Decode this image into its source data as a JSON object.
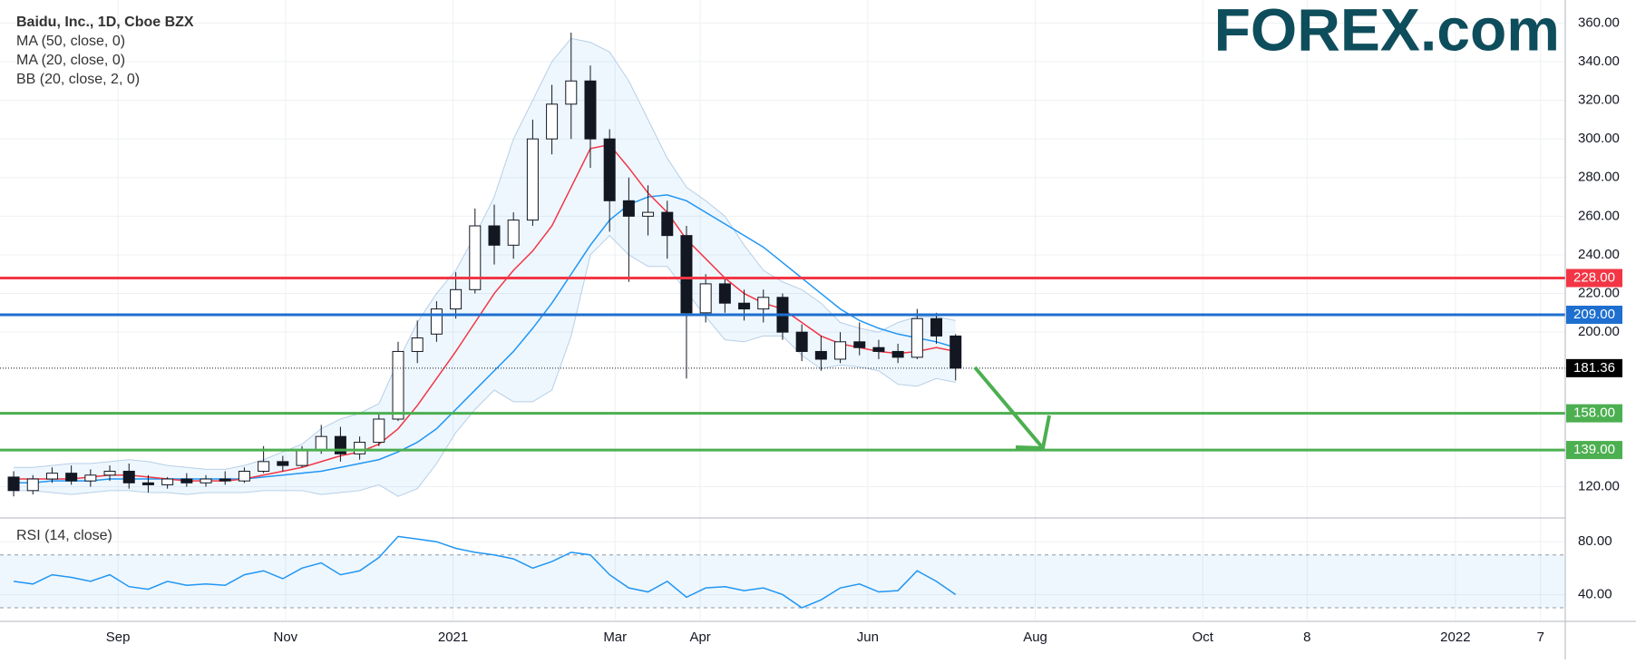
{
  "chart_data": [
    {
      "type": "candlestick",
      "title": "Baidu, Inc., 1D, Cboe BZX",
      "logo": "FOREX.com",
      "x": [
        -38,
        -31,
        -24,
        -17,
        -10,
        -3,
        4,
        11,
        18,
        25,
        32,
        39,
        46,
        53,
        60,
        67,
        74,
        81,
        88,
        95,
        102,
        109,
        116,
        123,
        130,
        137,
        144,
        151,
        158,
        165,
        172,
        179,
        186,
        193,
        200,
        207,
        214,
        221,
        228,
        235,
        242,
        249,
        256,
        263,
        270,
        277,
        284,
        291,
        298,
        305
      ],
      "open": [
        125,
        118,
        124,
        127,
        123,
        126,
        128,
        122,
        121,
        124,
        122,
        124,
        123,
        128,
        133,
        131,
        139,
        146,
        137,
        143,
        155,
        190,
        199,
        212,
        222,
        255,
        245,
        258,
        300,
        318,
        330,
        300,
        268,
        260,
        262,
        250,
        210,
        225,
        215,
        212,
        218,
        200,
        190,
        186,
        195,
        192,
        190,
        187,
        207,
        198
      ],
      "high": [
        128,
        126,
        130,
        131,
        129,
        131,
        132,
        126,
        125,
        127,
        126,
        128,
        130,
        141,
        136,
        141,
        152,
        151,
        146,
        158,
        195,
        206,
        216,
        231,
        264,
        266,
        262,
        310,
        328,
        355,
        338,
        305,
        280,
        276,
        268,
        255,
        230,
        228,
        222,
        222,
        220,
        204,
        198,
        200,
        205,
        196,
        194,
        212,
        210,
        199
      ],
      "low": [
        115,
        116,
        122,
        121,
        120,
        123,
        119,
        117,
        119,
        120,
        120,
        121,
        122,
        127,
        128,
        130,
        137,
        133,
        134,
        141,
        154,
        184,
        195,
        207,
        220,
        235,
        238,
        255,
        292,
        300,
        285,
        252,
        226,
        250,
        238,
        176,
        205,
        210,
        206,
        205,
        196,
        185,
        180,
        184,
        188,
        186,
        184,
        186,
        194,
        175
      ],
      "close": [
        118,
        124,
        127,
        123,
        126,
        128,
        122,
        121,
        124,
        122,
        124,
        123,
        128,
        133,
        131,
        139,
        146,
        137,
        143,
        155,
        190,
        197,
        212,
        222,
        255,
        245,
        258,
        300,
        318,
        330,
        300,
        268,
        260,
        262,
        250,
        210,
        225,
        215,
        212,
        218,
        200,
        190,
        186,
        195,
        192,
        190,
        187,
        207,
        198,
        181.36
      ],
      "series": [
        {
          "name": "MA (50, close, 0)",
          "color": "#2196f3",
          "values": [
            122,
            122,
            123,
            123,
            123,
            124,
            124,
            124,
            124,
            124,
            124,
            124,
            124,
            125,
            126,
            127,
            128,
            130,
            132,
            134,
            138,
            143,
            150,
            160,
            170,
            180,
            190,
            202,
            215,
            230,
            245,
            258,
            266,
            270,
            271,
            268,
            262,
            256,
            250,
            244,
            236,
            228,
            220,
            212,
            206,
            202,
            199,
            197,
            195,
            192
          ]
        },
        {
          "name": "MA (20, close, 0)",
          "color": "#f23645",
          "values": [
            124,
            124,
            124,
            124,
            125,
            126,
            126,
            125,
            124,
            123,
            123,
            123,
            124,
            126,
            128,
            130,
            133,
            136,
            138,
            142,
            150,
            162,
            176,
            190,
            205,
            220,
            232,
            242,
            255,
            275,
            295,
            297,
            285,
            272,
            262,
            248,
            238,
            228,
            220,
            215,
            212,
            205,
            198,
            194,
            192,
            190,
            189,
            190,
            192,
            190
          ]
        },
        {
          "name": "BB (20, close, 2, 0)",
          "color": "#b7cfe6",
          "upper": [
            130,
            130,
            131,
            132,
            132,
            133,
            134,
            133,
            131,
            130,
            129,
            129,
            131,
            134,
            138,
            142,
            150,
            155,
            158,
            163,
            185,
            205,
            220,
            232,
            250,
            270,
            300,
            320,
            340,
            352,
            350,
            345,
            330,
            310,
            290,
            275,
            268,
            260,
            245,
            232,
            226,
            222,
            215,
            205,
            202,
            200,
            205,
            208,
            208,
            206
          ],
          "lower": [
            118,
            118,
            117,
            116,
            117,
            118,
            118,
            117,
            117,
            116,
            117,
            117,
            117,
            118,
            118,
            118,
            116,
            117,
            118,
            121,
            115,
            119,
            132,
            148,
            160,
            170,
            164,
            164,
            170,
            198,
            240,
            250,
            240,
            234,
            234,
            221,
            208,
            196,
            195,
            198,
            198,
            188,
            181,
            183,
            182,
            180,
            173,
            172,
            176,
            174
          ]
        }
      ],
      "levels": [
        {
          "value": 228,
          "label": "228.00",
          "color": "#f23645"
        },
        {
          "value": 209,
          "label": "209.00",
          "color": "#1e6fcf"
        },
        {
          "value": 158,
          "label": "158.00",
          "color": "#4caf50"
        },
        {
          "value": 139,
          "label": "139.00",
          "color": "#4caf50"
        }
      ],
      "last": {
        "value": 181.36,
        "label": "181.36"
      },
      "xlim": [
        -40,
        527
      ],
      "xticks": [
        {
          "value": 0,
          "label": "Sep"
        },
        {
          "value": 61,
          "label": "Nov"
        },
        {
          "value": 122,
          "label": "2021"
        },
        {
          "value": 181,
          "label": "Mar"
        },
        {
          "value": 212,
          "label": "Apr"
        },
        {
          "value": 273,
          "label": "Jun"
        },
        {
          "value": 334,
          "label": "Aug"
        },
        {
          "value": 395,
          "label": "Oct"
        },
        {
          "value": 433,
          "label": "8"
        },
        {
          "value": 487,
          "label": "2022"
        },
        {
          "value": 518,
          "label": "7"
        }
      ],
      "ylim": [
        104.3,
        371.9
      ],
      "yticks": [
        {
          "value": 120,
          "label": "120.00"
        },
        {
          "value": 200,
          "label": "200.00"
        },
        {
          "value": 220,
          "label": "220.00"
        },
        {
          "value": 240,
          "label": "240.00"
        },
        {
          "value": 260,
          "label": "260.00"
        },
        {
          "value": 280,
          "label": "280.00"
        },
        {
          "value": 300,
          "label": "300.00"
        },
        {
          "value": 320,
          "label": "320.00"
        },
        {
          "value": 340,
          "label": "340.00"
        },
        {
          "value": 360,
          "label": "360.00"
        }
      ],
      "grid": true
    },
    {
      "type": "line",
      "title": "RSI (14, close)",
      "x": [
        -38,
        -31,
        -24,
        -17,
        -10,
        -3,
        4,
        11,
        18,
        25,
        32,
        39,
        46,
        53,
        60,
        67,
        74,
        81,
        88,
        95,
        102,
        109,
        116,
        123,
        130,
        137,
        144,
        151,
        158,
        165,
        172,
        179,
        186,
        193,
        200,
        207,
        214,
        221,
        228,
        235,
        242,
        249,
        256,
        263,
        270,
        277,
        284,
        291,
        298,
        305
      ],
      "series": [
        {
          "name": "RSI (14, close)",
          "color": "#2196f3",
          "values": [
            50,
            48,
            55,
            53,
            50,
            55,
            46,
            44,
            50,
            47,
            48,
            47,
            55,
            58,
            52,
            60,
            64,
            55,
            58,
            68,
            84,
            82,
            80,
            75,
            72,
            70,
            67,
            60,
            65,
            72,
            70,
            55,
            45,
            42,
            50,
            38,
            45,
            46,
            43,
            45,
            40,
            30,
            36,
            45,
            48,
            42,
            43,
            58,
            50,
            40
          ]
        }
      ],
      "bands": [
        30,
        70
      ],
      "xlim": [
        -40,
        527
      ],
      "ylim": [
        20.4,
        97.3
      ],
      "yticks": [
        {
          "value": 40,
          "label": "40.00"
        },
        {
          "value": 80,
          "label": "80.00"
        }
      ],
      "grid": true
    }
  ]
}
